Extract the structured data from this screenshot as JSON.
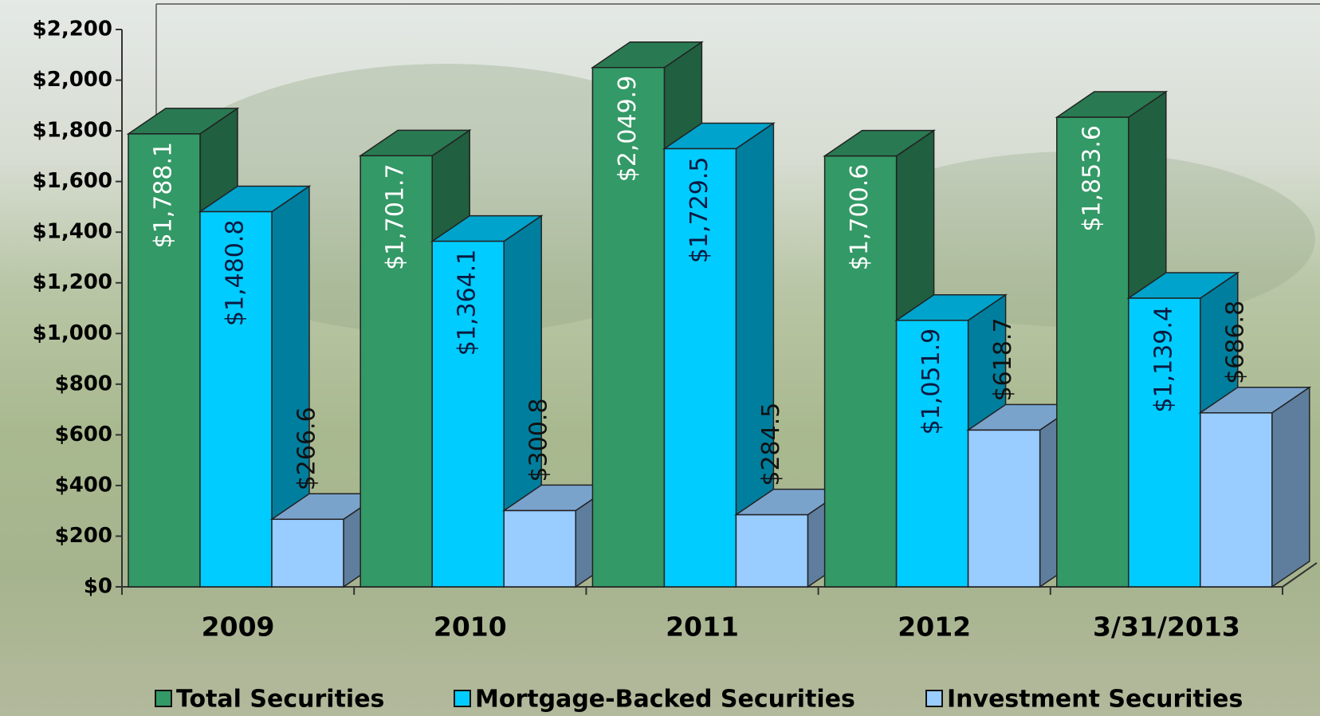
{
  "chart_data": {
    "type": "bar3d",
    "categories": [
      "2009",
      "2010",
      "2011",
      "2012",
      "3/31/2013"
    ],
    "series": [
      {
        "name": "Total Securities",
        "color": "#339966",
        "label_color": "#ffffff",
        "values": [
          1788.1,
          1701.7,
          2049.9,
          1700.6,
          1853.6
        ],
        "value_labels": [
          "$1,788.1",
          "$1,701.7",
          "$2,049.9",
          "$1,700.6",
          "$1,853.6"
        ]
      },
      {
        "name": "Mortgage-Backed Securities",
        "color": "#00ccff",
        "label_color": "#0a1a40",
        "values": [
          1480.8,
          1364.1,
          1729.5,
          1051.9,
          1139.4
        ],
        "value_labels": [
          "$1,480.8",
          "$1,364.1",
          "$1,729.5",
          "$1,051.9",
          "$1,139.4"
        ]
      },
      {
        "name": "Investment Securities",
        "color": "#99ccff",
        "label_color": "#111111",
        "values": [
          266.6,
          300.8,
          284.5,
          618.7,
          686.8
        ],
        "value_labels": [
          "$266.6",
          "$300.8",
          "$284.5",
          "$618.7",
          "$686.8"
        ]
      }
    ],
    "ylim": [
      0,
      2200
    ],
    "yticks": [
      {
        "value": 0,
        "label": "$0"
      },
      {
        "value": 200,
        "label": "$200"
      },
      {
        "value": 400,
        "label": "$400"
      },
      {
        "value": 600,
        "label": "$600"
      },
      {
        "value": 800,
        "label": "$800"
      },
      {
        "value": 1000,
        "label": "$1,000"
      },
      {
        "value": 1200,
        "label": "$1,200"
      },
      {
        "value": 1400,
        "label": "$1,400"
      },
      {
        "value": 1600,
        "label": "$1,600"
      },
      {
        "value": 1800,
        "label": "$1,800"
      },
      {
        "value": 2000,
        "label": "$2,000"
      },
      {
        "value": 2200,
        "label": "$2,200"
      }
    ],
    "legend": "bottom"
  }
}
